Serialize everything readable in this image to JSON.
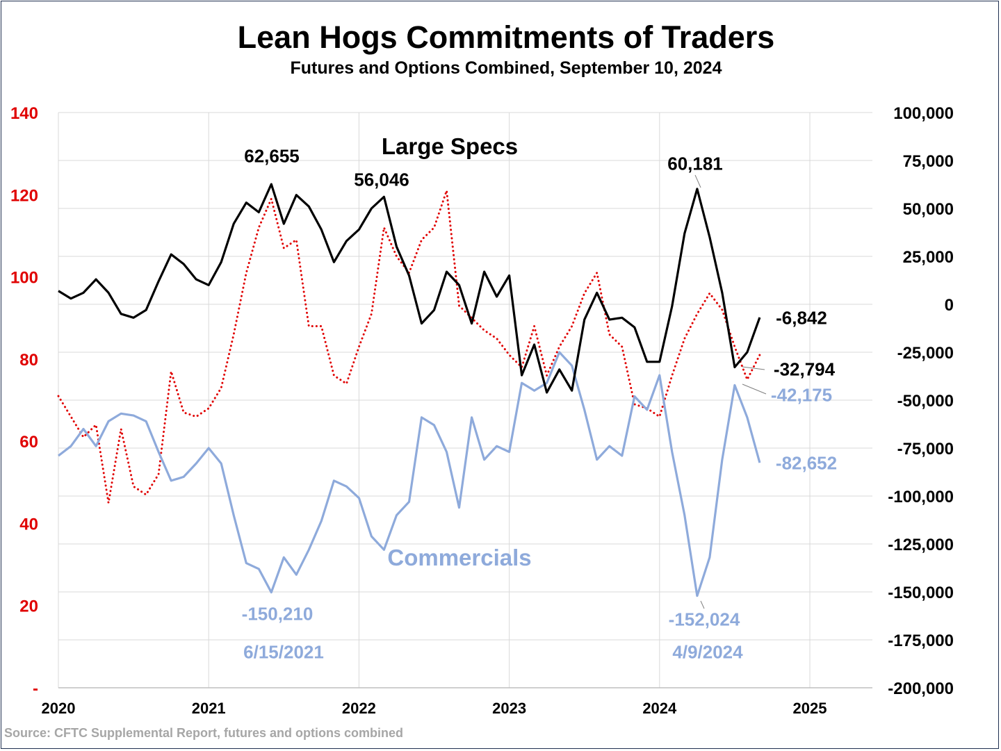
{
  "title": "Lean Hogs Commitments of Traders",
  "subtitle": "Futures and Options Combined, September 10, 2024",
  "source": "Source: CFTC Supplemental Report, futures and options combined",
  "colors": {
    "large_specs": "#000000",
    "commercials": "#8eaadb",
    "dotted": "#e00000",
    "left_axis": "#e00000",
    "grid": "#d9d9d9"
  },
  "chart_data": {
    "type": "line",
    "title": "Lean Hogs Commitments of Traders",
    "subtitle": "Futures and Options Combined, September 10, 2024",
    "xlabel": "",
    "ylabel": "",
    "xlim": [
      "2020",
      "2025"
    ],
    "x_ticks": [
      "2020",
      "2021",
      "2022",
      "2023",
      "2024",
      "2025"
    ],
    "y_left": {
      "lim": [
        0,
        140
      ],
      "ticks": [
        "140",
        "120",
        "100",
        "80",
        "60",
        "40",
        "20",
        "-"
      ],
      "color": "#e00000"
    },
    "y_right": {
      "lim": [
        -200000,
        100000
      ],
      "ticks": [
        "100,000",
        "75,000",
        "50,000",
        "25,000",
        "0",
        "-25,000",
        "-50,000",
        "-75,000",
        "-100,000",
        "-125,000",
        "-150,000",
        "-175,000",
        "-200,000"
      ]
    },
    "grid": true,
    "dates": [
      "2020-01",
      "2020-02",
      "2020-03",
      "2020-04",
      "2020-05",
      "2020-06",
      "2020-07",
      "2020-08",
      "2020-09",
      "2020-10",
      "2020-11",
      "2020-12",
      "2021-01",
      "2021-02",
      "2021-03",
      "2021-04",
      "2021-05",
      "2021-06",
      "2021-07",
      "2021-08",
      "2021-09",
      "2021-10",
      "2021-11",
      "2021-12",
      "2022-01",
      "2022-02",
      "2022-03",
      "2022-04",
      "2022-05",
      "2022-06",
      "2022-07",
      "2022-08",
      "2022-09",
      "2022-10",
      "2022-11",
      "2022-12",
      "2023-01",
      "2023-02",
      "2023-03",
      "2023-04",
      "2023-05",
      "2023-06",
      "2023-07",
      "2023-08",
      "2023-09",
      "2023-10",
      "2023-11",
      "2023-12",
      "2024-01",
      "2024-02",
      "2024-03",
      "2024-04",
      "2024-05",
      "2024-06",
      "2024-07",
      "2024-08",
      "2024-09"
    ],
    "series": [
      {
        "name": "Large Specs",
        "axis": "right",
        "style": "solid",
        "color": "#000000",
        "values": [
          7000,
          3000,
          6000,
          13000,
          6000,
          -5000,
          -7000,
          -3000,
          12000,
          26000,
          21000,
          13000,
          10000,
          22000,
          42000,
          53000,
          48000,
          62655,
          42000,
          57000,
          51000,
          39000,
          22000,
          33000,
          39000,
          50000,
          56046,
          30000,
          15000,
          -10000,
          -3000,
          17000,
          10000,
          -10000,
          17000,
          4000,
          15000,
          -37000,
          -21000,
          -46000,
          -34000,
          -45000,
          -8000,
          6000,
          -8000,
          -7000,
          -12000,
          -30000,
          -30000,
          -1000,
          37000,
          60181,
          35000,
          6000,
          -32794,
          -25000,
          -6842
        ]
      },
      {
        "name": "Commercials",
        "axis": "right",
        "style": "solid",
        "color": "#8eaadb",
        "values": [
          -79000,
          -74000,
          -65000,
          -74000,
          -61000,
          -57000,
          -58000,
          -61000,
          -77000,
          -92000,
          -90000,
          -83000,
          -75000,
          -83000,
          -110000,
          -135000,
          -138000,
          -150210,
          -132000,
          -141000,
          -128000,
          -113000,
          -92000,
          -95000,
          -101000,
          -121000,
          -128000,
          -110000,
          -103000,
          -59000,
          -63000,
          -77000,
          -106000,
          -59000,
          -81000,
          -74000,
          -77000,
          -41000,
          -45000,
          -41000,
          -25000,
          -32000,
          -55000,
          -81000,
          -74000,
          -79000,
          -48000,
          -55000,
          -37000,
          -77000,
          -110000,
          -152024,
          -132000,
          -81000,
          -42175,
          -59000,
          -82652
        ]
      },
      {
        "axis": "left",
        "style": "dotted",
        "color": "#e00000",
        "values": [
          71,
          66,
          61,
          64,
          45,
          63,
          49,
          47,
          52,
          77,
          67,
          66,
          68,
          73,
          86,
          101,
          112,
          119,
          107,
          109,
          88,
          88,
          76,
          74,
          83,
          91,
          112,
          105,
          101,
          109,
          112,
          121,
          93,
          90,
          87,
          85,
          81,
          78,
          88,
          76,
          83,
          88,
          96,
          101,
          86,
          83,
          69,
          68,
          66,
          76,
          85,
          91,
          96,
          92,
          83,
          75,
          81
        ]
      }
    ],
    "annotations": [
      {
        "text": "Large Specs",
        "series": "Large Specs"
      },
      {
        "text": "Commercials",
        "series": "Commercials"
      },
      {
        "text": "62,655",
        "series": "Large Specs",
        "date": "2021-06"
      },
      {
        "text": "56,046",
        "series": "Large Specs",
        "date": "2022-03"
      },
      {
        "text": "60,181",
        "series": "Large Specs",
        "date": "2024-04"
      },
      {
        "text": "-6,842",
        "series": "Large Specs",
        "date": "2024-09"
      },
      {
        "text": "-32,794",
        "series": "Large Specs",
        "date": "2024-07"
      },
      {
        "text": "-42,175",
        "series": "Commercials",
        "date": "2024-07"
      },
      {
        "text": "-82,652",
        "series": "Commercials",
        "date": "2024-09"
      },
      {
        "text": "-150,210",
        "series": "Commercials",
        "date": "6/15/2021"
      },
      {
        "text": "6/15/2021",
        "series": "Commercials"
      },
      {
        "text": "-152,024",
        "series": "Commercials",
        "date": "4/9/2024"
      },
      {
        "text": "4/9/2024",
        "series": "Commercials"
      }
    ]
  }
}
